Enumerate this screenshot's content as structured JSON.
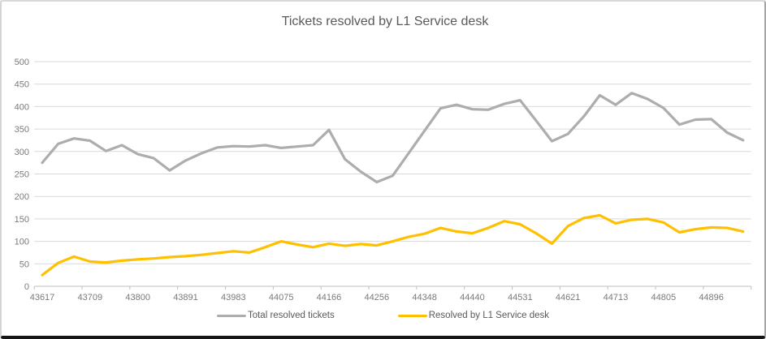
{
  "title": "Tickets resolved by L1 Service desk",
  "chart_data": {
    "type": "line",
    "title": "Tickets resolved by L1 Service desk",
    "xlabel": "",
    "ylabel": "",
    "ylim": [
      0,
      500
    ],
    "y_ticks": [
      0,
      50,
      100,
      150,
      200,
      250,
      300,
      350,
      400,
      450,
      500
    ],
    "grid": true,
    "legend_position": "bottom",
    "x_tick_labels": [
      "43617",
      "43709",
      "43800",
      "43891",
      "43983",
      "44075",
      "44166",
      "44256",
      "44348",
      "44440",
      "44531",
      "44621",
      "44713",
      "44805",
      "44896"
    ],
    "x_label_every": 3,
    "points_per_series": 45,
    "series": [
      {
        "name": "Total resolved tickets",
        "color": "#ADADAD",
        "values": [
          275,
          317,
          329,
          324,
          301,
          314,
          294,
          285,
          258,
          280,
          296,
          309,
          312,
          311,
          314,
          308,
          311,
          314,
          348,
          283,
          255,
          232,
          246,
          296,
          346,
          396,
          404,
          394,
          393,
          406,
          414,
          369,
          323,
          339,
          378,
          425,
          404,
          430,
          417,
          397,
          360,
          371,
          372,
          342,
          325
        ]
      },
      {
        "name": "Resolved by L1 Service desk",
        "color": "#FFC000",
        "values": [
          25,
          52,
          66,
          55,
          53,
          57,
          60,
          62,
          65,
          67,
          70,
          74,
          78,
          75,
          87,
          100,
          93,
          87,
          95,
          90,
          94,
          91,
          100,
          110,
          117,
          130,
          122,
          118,
          130,
          145,
          138,
          118,
          95,
          134,
          152,
          158,
          140,
          148,
          150,
          142,
          120,
          127,
          131,
          130,
          122
        ]
      }
    ],
    "axis_color": "#BFBFBF",
    "gridline_color": "#D9D9D9"
  }
}
